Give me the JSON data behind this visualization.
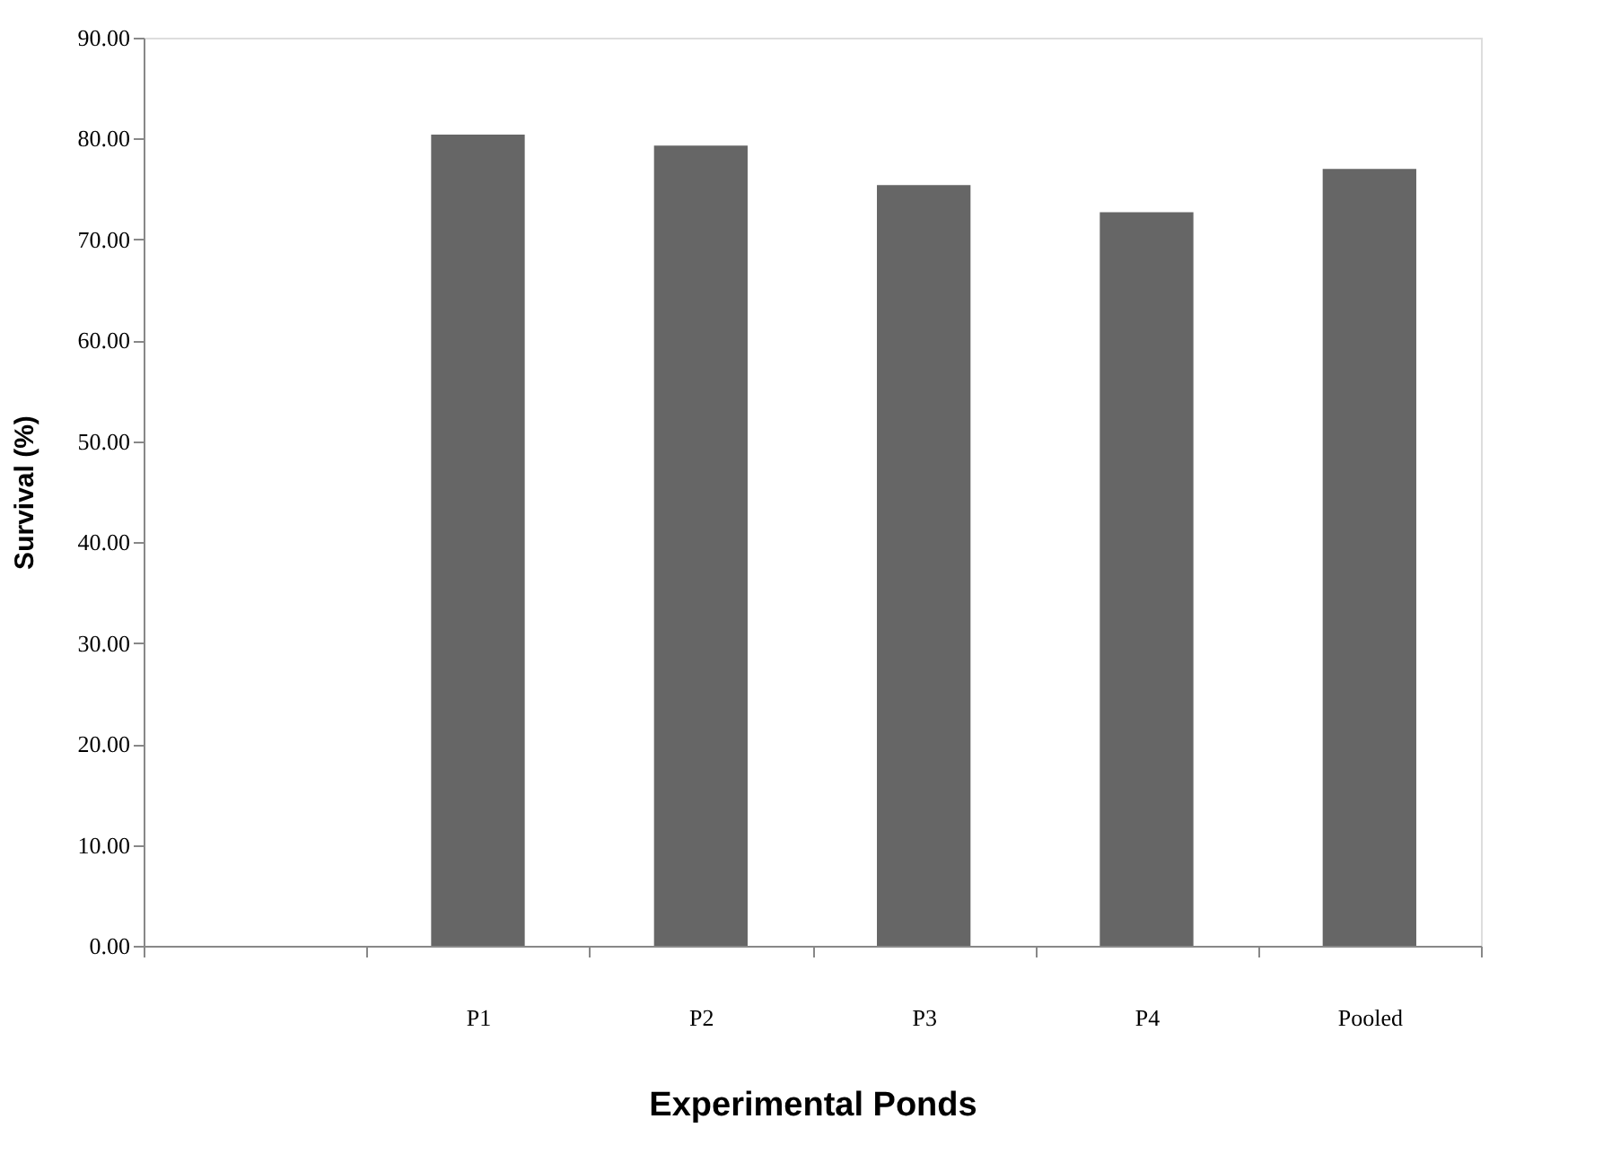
{
  "chart_data": {
    "type": "bar",
    "xlabel": "Experimental Ponds",
    "ylabel": "Survival (%)",
    "categories": [
      null,
      "P1",
      "P2",
      "P3",
      "P4",
      "Pooled"
    ],
    "values": [
      null,
      80.4,
      79.3,
      75.4,
      72.7,
      77.0
    ],
    "color": "#666666",
    "ylim": [
      0,
      90
    ],
    "yticks": [
      {
        "value": 0,
        "label": "0.00"
      },
      {
        "value": 10,
        "label": "10.00"
      },
      {
        "value": 20,
        "label": "20.00"
      },
      {
        "value": 30,
        "label": "30.00"
      },
      {
        "value": 40,
        "label": "40.00"
      },
      {
        "value": 50,
        "label": "50.00"
      },
      {
        "value": 60,
        "label": "60.00"
      },
      {
        "value": 70,
        "label": "70.00"
      },
      {
        "value": 80,
        "label": "80.00"
      },
      {
        "value": 90,
        "label": "90.00"
      }
    ],
    "grid": false
  }
}
